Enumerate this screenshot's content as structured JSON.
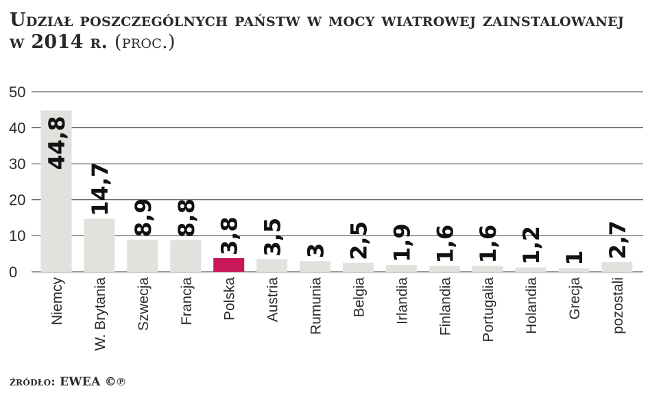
{
  "title": {
    "main": "Udział poszczególnych państw w mocy wiatrowej zainstalowanej w 2014 r.",
    "unit": "(proc.)"
  },
  "source": "źródło: EWEA ©℗",
  "colors": {
    "bar": "#e2e1dd",
    "highlight": "#c8185a",
    "grid": "#333333",
    "text": "#2a2a2a"
  },
  "chart_data": {
    "type": "bar",
    "title": "Udział poszczególnych państw w mocy wiatrowej zainstalowanej w 2014 r. (proc.)",
    "xlabel": "",
    "ylabel": "",
    "ylim": [
      0,
      50
    ],
    "yticks": [
      0,
      10,
      20,
      30,
      40,
      50
    ],
    "grid": true,
    "categories": [
      "Niemcy",
      "W. Brytania",
      "Szwecja",
      "Francja",
      "Polska",
      "Austria",
      "Rumunia",
      "Belgia",
      "Irlandia",
      "Finlandia",
      "Portugalia",
      "Holandia",
      "Grecja",
      "pozostali"
    ],
    "values": [
      44.8,
      14.7,
      8.9,
      8.8,
      3.8,
      3.5,
      3,
      2.5,
      1.9,
      1.6,
      1.6,
      1.2,
      1,
      2.7
    ],
    "labels": [
      "44,8",
      "14,7",
      "8,9",
      "8,8",
      "3,8",
      "3,5",
      "3",
      "2,5",
      "1,9",
      "1,6",
      "1,6",
      "1,2",
      "1",
      "2,7"
    ],
    "highlight": "Polska"
  }
}
